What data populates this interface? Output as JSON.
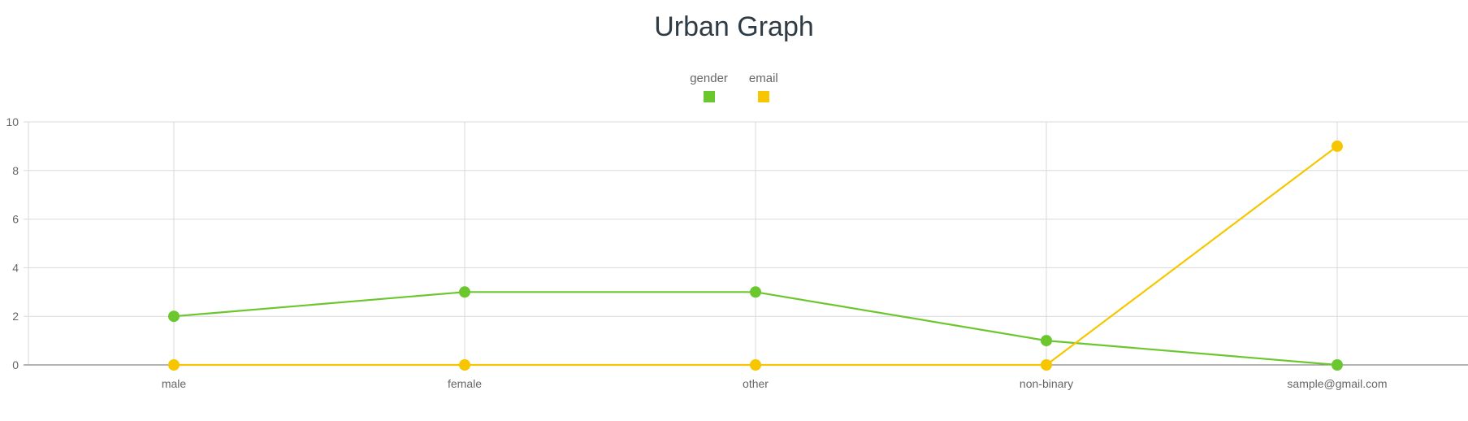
{
  "chart_data": {
    "type": "line",
    "title": "Urban Graph",
    "legend_position": "top-center",
    "grid": true,
    "categories": [
      "male",
      "female",
      "other",
      "non-binary",
      "sample@gmail.com"
    ],
    "series": [
      {
        "name": "gender",
        "color": "#6cc72f",
        "values": [
          2,
          3,
          3,
          1,
          0
        ]
      },
      {
        "name": "email",
        "color": "#f7c600",
        "values": [
          0,
          0,
          0,
          0,
          9
        ]
      }
    ],
    "ylim": [
      0,
      10
    ],
    "yticks": [
      0,
      2,
      4,
      6,
      8,
      10
    ],
    "colors": {
      "grid": "#d9d9d9",
      "axis": "#888888",
      "text": "#666666",
      "title": "#2f3b45"
    }
  }
}
